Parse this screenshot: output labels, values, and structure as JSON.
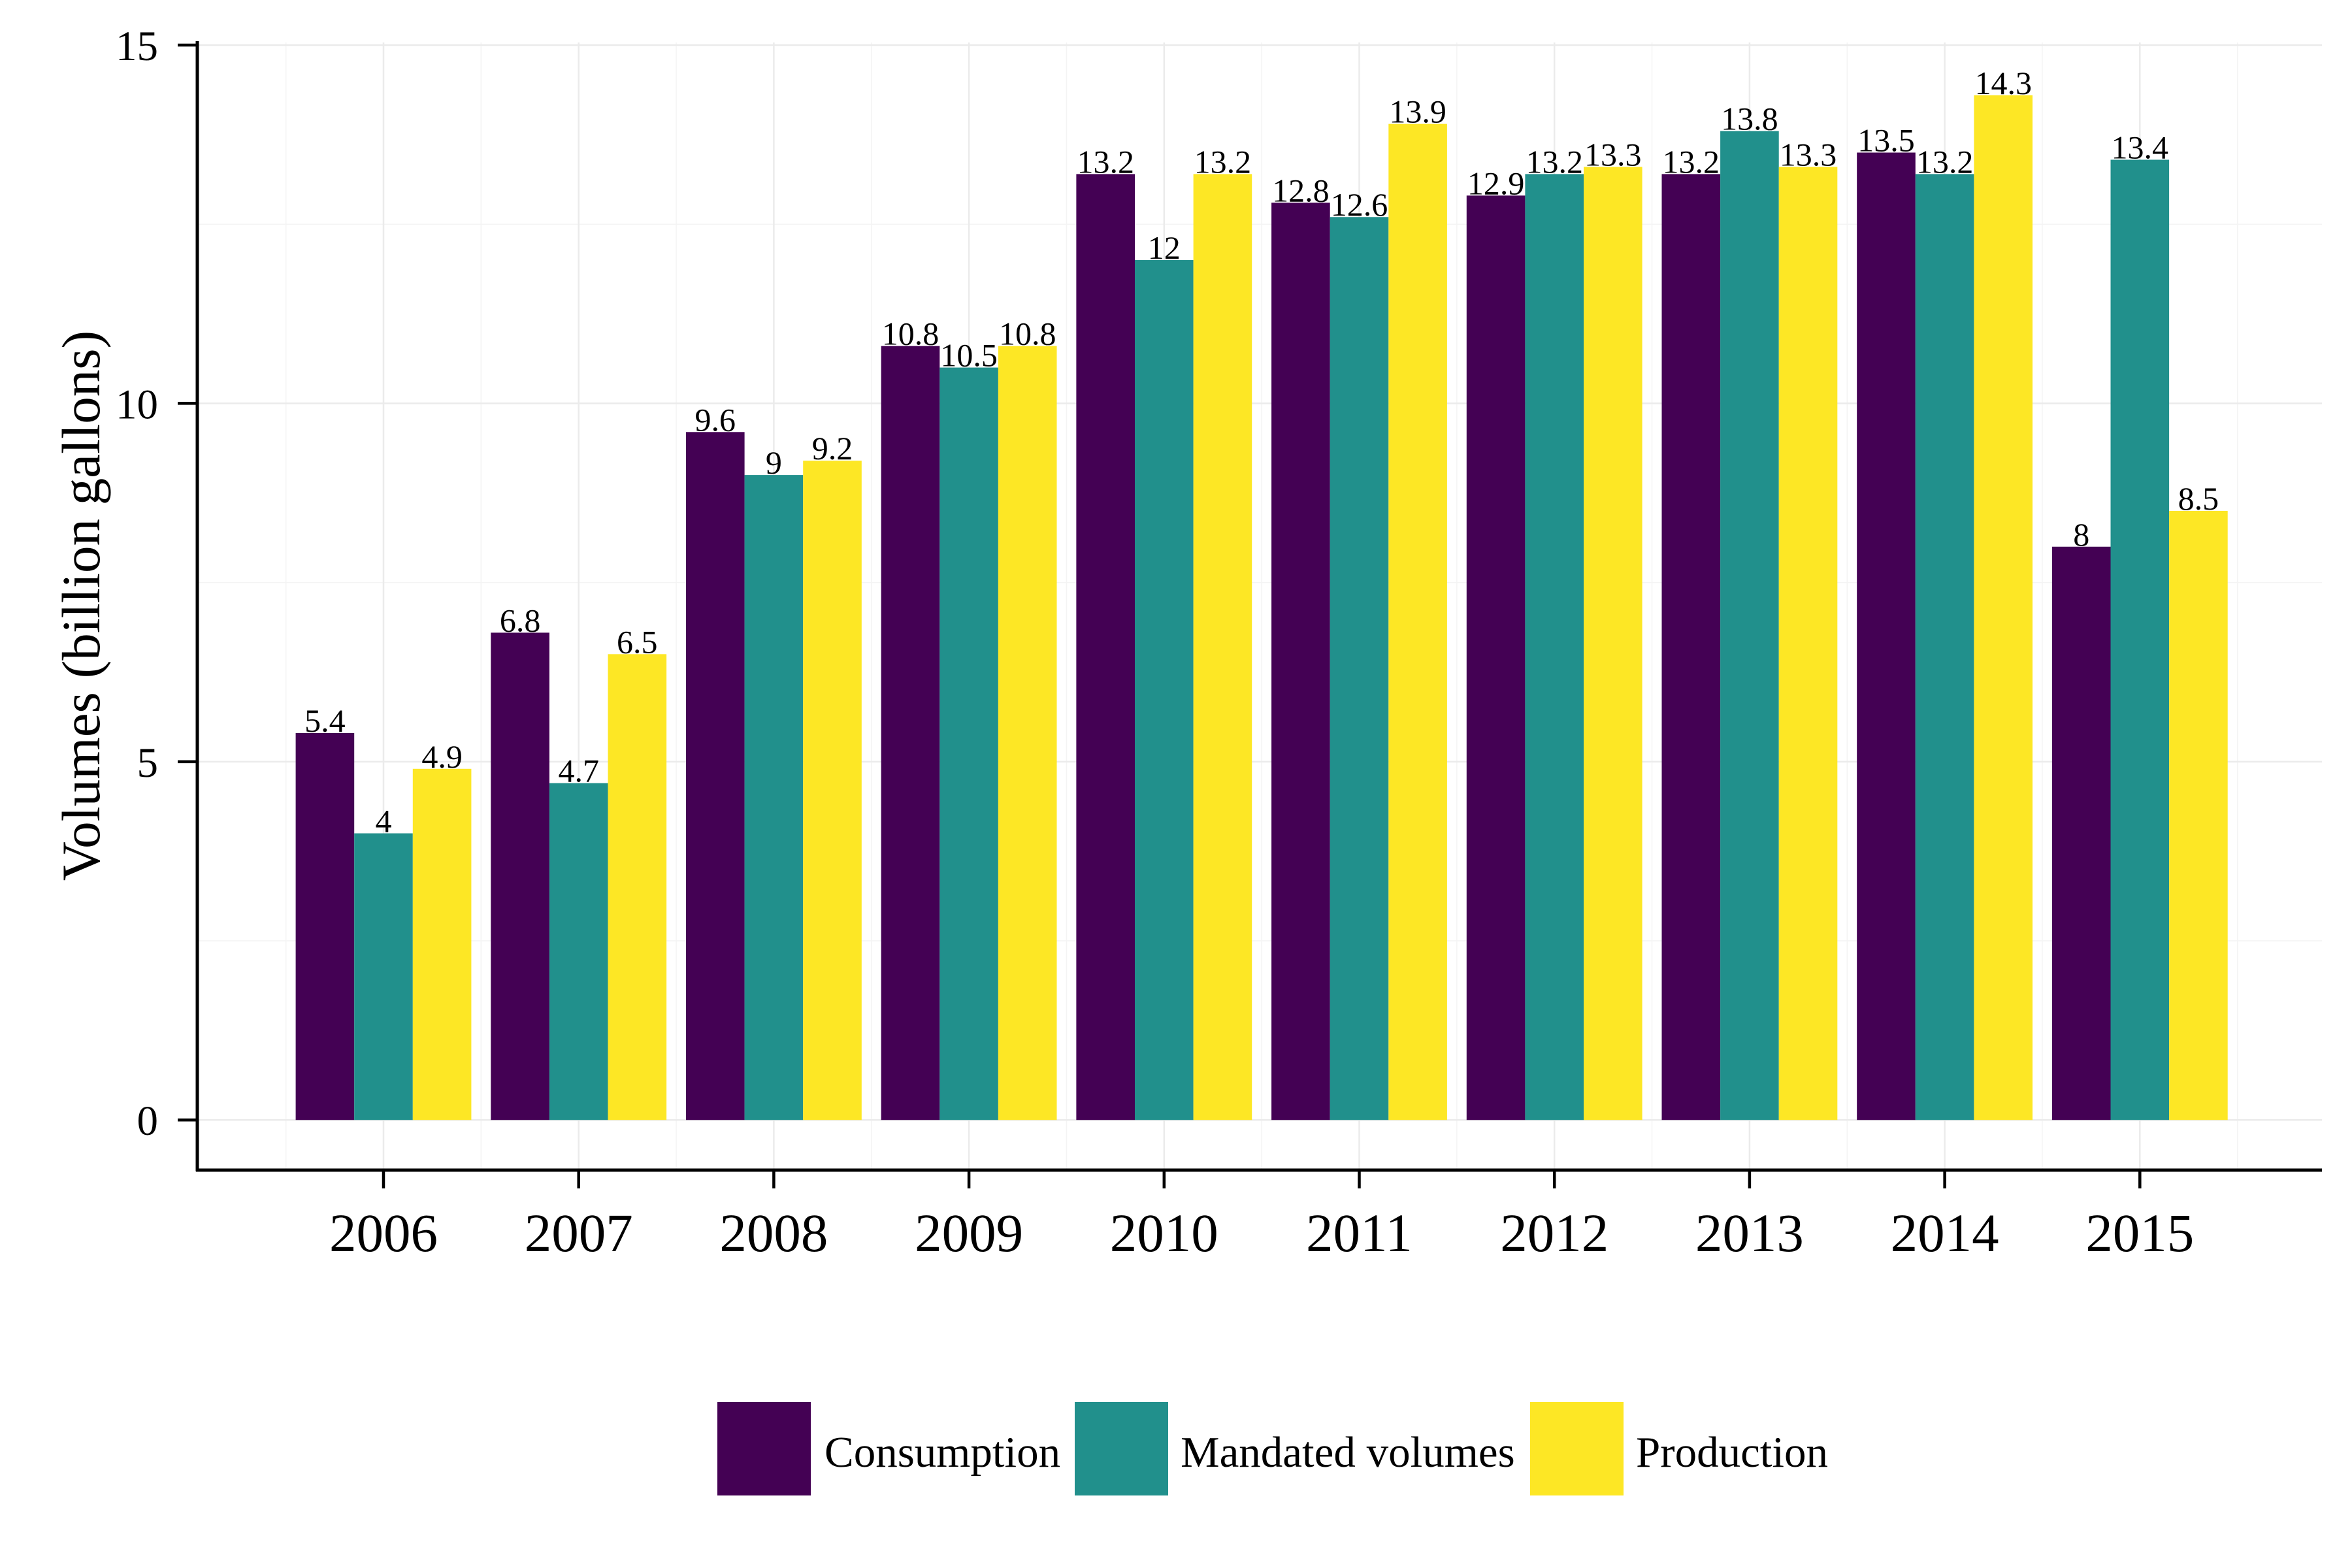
{
  "chart_data": {
    "type": "bar",
    "ylabel": "Volumes (billion gallons)",
    "categories": [
      "2006",
      "2007",
      "2008",
      "2009",
      "2010",
      "2011",
      "2012",
      "2013",
      "2014",
      "2015"
    ],
    "series": [
      {
        "name": "Consumption",
        "color": "#440154",
        "values": [
          5.4,
          6.8,
          9.6,
          10.8,
          13.2,
          12.8,
          12.9,
          13.2,
          13.5,
          8
        ]
      },
      {
        "name": "Mandated volumes",
        "color": "#21908C",
        "values": [
          4,
          4.7,
          9,
          10.5,
          12,
          12.6,
          13.2,
          13.8,
          13.2,
          13.4
        ]
      },
      {
        "name": "Production",
        "color": "#FDE725",
        "values": [
          4.9,
          6.5,
          9.2,
          10.8,
          13.2,
          13.9,
          13.3,
          13.3,
          14.3,
          8.5
        ]
      }
    ],
    "yticks": [
      0,
      5,
      10,
      15
    ],
    "ylim": [
      -0.7,
      15
    ],
    "data_labels": true,
    "grid": true,
    "legend": "bottom"
  }
}
